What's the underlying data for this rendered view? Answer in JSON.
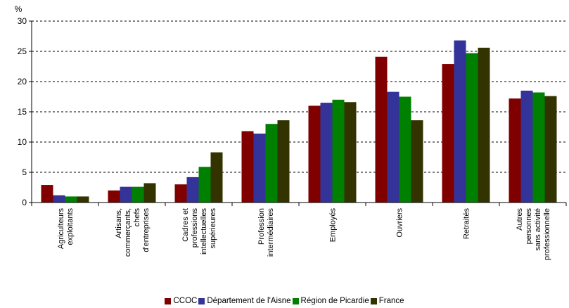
{
  "chart_data": {
    "type": "bar",
    "y_unit_label": "%",
    "ylim": [
      0,
      30
    ],
    "yticks": [
      0,
      5,
      10,
      15,
      20,
      25,
      30
    ],
    "grid": true,
    "legend_position": "bottom",
    "categories": [
      [
        "Agriculteurs",
        "exploitants"
      ],
      [
        "Artisans,",
        "commerçants,",
        "chefs",
        "d'entreprises"
      ],
      [
        "Cadres et",
        "professions",
        "intellectuelles",
        "supérieures"
      ],
      [
        "Profession",
        "intermédiaires"
      ],
      [
        "Employés"
      ],
      [
        "Ouvriers"
      ],
      [
        "Retraités"
      ],
      [
        "Autres",
        "personnes",
        "sans activité",
        "professionnelle"
      ]
    ],
    "series": [
      {
        "name": "CCOC",
        "color": "#800000",
        "values": [
          2.9,
          2.0,
          3.0,
          11.8,
          16.0,
          24.1,
          22.9,
          17.2
        ]
      },
      {
        "name": "Département de l'Aisne",
        "color": "#333399",
        "values": [
          1.2,
          2.6,
          4.2,
          11.4,
          16.5,
          18.3,
          26.8,
          18.5
        ]
      },
      {
        "name": "Région de Picardie",
        "color": "#008000",
        "values": [
          1.0,
          2.6,
          5.9,
          13.0,
          17.0,
          17.5,
          24.7,
          18.2
        ]
      },
      {
        "name": "France",
        "color": "#333300",
        "values": [
          1.0,
          3.2,
          8.3,
          13.6,
          16.6,
          13.6,
          25.6,
          17.6
        ]
      }
    ]
  }
}
